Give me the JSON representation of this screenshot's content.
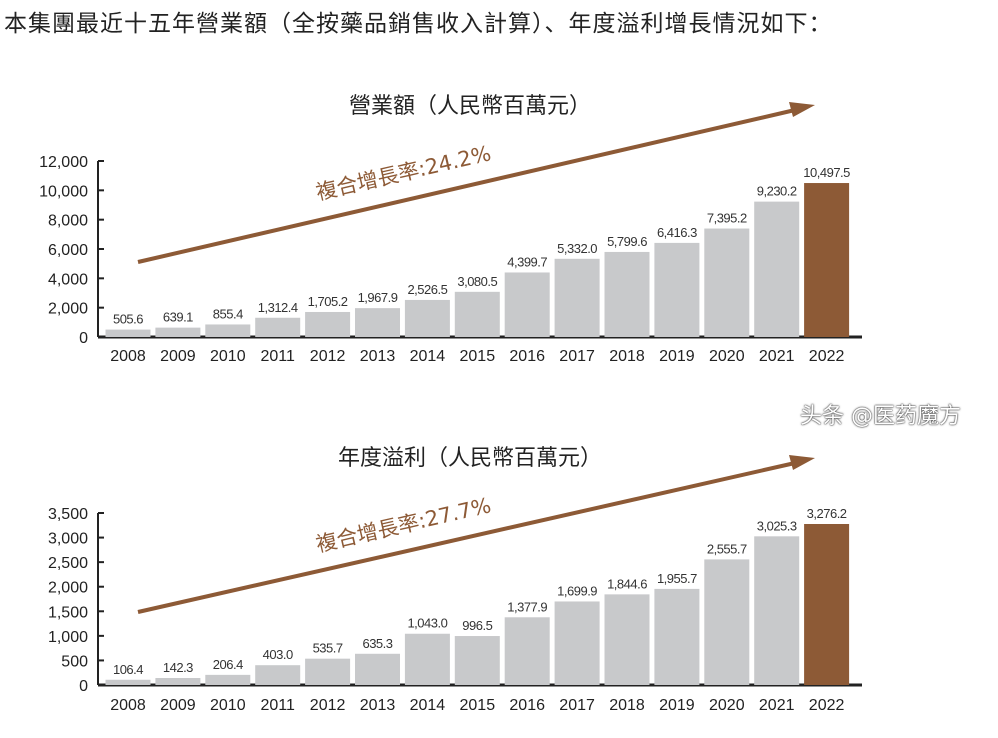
{
  "header": "本集團最近十五年營業額（全按藥品銷售收入計算）、年度溢利增長情況如下：",
  "watermark": "头条 @医药魔方",
  "colors": {
    "bar": "#c8c9cb",
    "highlight_bar": "#8d5a36",
    "arrow": "#8d5a36",
    "axis": "#222222"
  },
  "chart_data": [
    {
      "type": "bar",
      "title": "營業額（人民幣百萬元）",
      "annotation": "複合增長率:24.2%",
      "categories": [
        "2008",
        "2009",
        "2010",
        "2011",
        "2012",
        "2013",
        "2014",
        "2015",
        "2016",
        "2017",
        "2018",
        "2019",
        "2020",
        "2021",
        "2022"
      ],
      "values": [
        505.6,
        639.1,
        855.4,
        1312.4,
        1705.2,
        1967.9,
        2526.5,
        3080.5,
        4399.7,
        5332.0,
        5799.6,
        6416.3,
        7395.2,
        9230.2,
        10497.5
      ],
      "labels": [
        "505.6",
        "639.1",
        "855.4",
        "1,312.4",
        "1,705.2",
        "1,967.9",
        "2,526.5",
        "3,080.5",
        "4,399.7",
        "5,332.0",
        "5,799.6",
        "6,416.3",
        "7,395.2",
        "9,230.2",
        "10,497.5"
      ],
      "yticks": [
        "0",
        "2,000",
        "4,000",
        "6,000",
        "8,000",
        "10,000",
        "12,000"
      ],
      "ylim": [
        0,
        12000
      ],
      "highlight": "2022",
      "grid": false
    },
    {
      "type": "bar",
      "title": "年度溢利（人民幣百萬元）",
      "annotation": "複合增長率:27.7%",
      "categories": [
        "2008",
        "2009",
        "2010",
        "2011",
        "2012",
        "2013",
        "2014",
        "2015",
        "2016",
        "2017",
        "2018",
        "2019",
        "2020",
        "2021",
        "2022"
      ],
      "values": [
        106.4,
        142.3,
        206.4,
        403.0,
        535.7,
        635.3,
        1043.0,
        996.5,
        1377.9,
        1699.9,
        1844.6,
        1955.7,
        2555.7,
        3025.3,
        3276.2
      ],
      "labels": [
        "106.4",
        "142.3",
        "206.4",
        "403.0",
        "535.7",
        "635.3",
        "1,043.0",
        "996.5",
        "1,377.9",
        "1,699.9",
        "1,844.6",
        "1,955.7",
        "2,555.7",
        "3,025.3",
        "3,276.2"
      ],
      "yticks": [
        "0",
        "500",
        "1,000",
        "1,500",
        "2,000",
        "2,500",
        "3,000",
        "3,500"
      ],
      "ylim": [
        0,
        3500
      ],
      "highlight": "2022",
      "grid": false
    }
  ]
}
